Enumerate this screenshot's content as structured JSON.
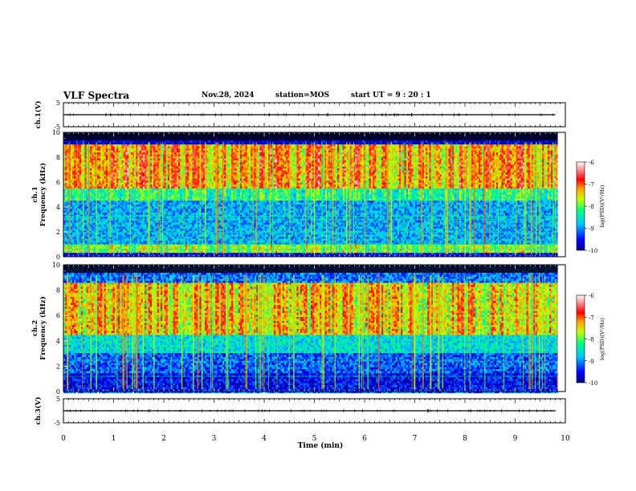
{
  "header": {
    "title": "VLF Spectra",
    "date": "Nov.28, 2024",
    "station": "station=MOS",
    "start": "start  UT =   9 : 20 : 1"
  },
  "colorbar": {
    "label": "log(PSD)(V²/Hz)",
    "ticks": [
      "-6",
      "-7",
      "-8",
      "-9",
      "-10"
    ],
    "colors": [
      "#000080",
      "#0000ff",
      "#00c8ff",
      "#00ff80",
      "#c8ff00",
      "#ffa000",
      "#ff0000",
      "#ff8080",
      "#ffffff"
    ]
  },
  "chart_data": [
    {
      "type": "line",
      "name": "ch1-waveform",
      "ylabel": "ch.1(V)",
      "ylim": [
        -5,
        5
      ],
      "ytick_labels": [
        "5",
        "-5"
      ],
      "x": [
        0,
        9.8
      ],
      "y": [
        0,
        0
      ]
    },
    {
      "type": "heatmap",
      "name": "ch1-spectrogram",
      "ylabel": "ch.1\nFrequency (kHz)",
      "ylim": [
        0,
        10
      ],
      "ytick_labels": [
        "0",
        "2",
        "4",
        "6",
        "8",
        "10"
      ],
      "xlim": [
        0,
        10
      ],
      "data_end_min": 9.85,
      "zlim": [
        -10,
        -6
      ],
      "bands": [
        {
          "f_lo": 0.0,
          "f_hi": 0.3,
          "level": 0.1
        },
        {
          "f_lo": 0.3,
          "f_hi": 1.0,
          "level": 0.55
        },
        {
          "f_lo": 1.0,
          "f_hi": 4.5,
          "level": 0.28
        },
        {
          "f_lo": 4.5,
          "f_hi": 5.5,
          "level": 0.45
        },
        {
          "f_lo": 5.5,
          "f_hi": 9.0,
          "level": 0.72
        },
        {
          "f_lo": 9.0,
          "f_hi": 10.0,
          "level": 0.08
        }
      ],
      "lines_khz": [
        0.6,
        1.0,
        1.35,
        1.95,
        3.0,
        3.25
      ]
    },
    {
      "type": "heatmap",
      "name": "ch2-spectrogram",
      "ylabel": "ch.2\nFrequency (kHz)",
      "ylim": [
        0,
        10
      ],
      "ytick_labels": [
        "0",
        "2",
        "4",
        "6",
        "8",
        "10"
      ],
      "xlim": [
        0,
        10
      ],
      "data_end_min": 9.85,
      "zlim": [
        -10,
        -6
      ],
      "bands": [
        {
          "f_lo": 0.0,
          "f_hi": 1.5,
          "level": 0.12
        },
        {
          "f_lo": 1.5,
          "f_hi": 3.0,
          "level": 0.2
        },
        {
          "f_lo": 3.0,
          "f_hi": 4.5,
          "level": 0.35
        },
        {
          "f_lo": 4.5,
          "f_hi": 8.5,
          "level": 0.66
        },
        {
          "f_lo": 8.5,
          "f_hi": 10.0,
          "level": 0.22
        }
      ],
      "lines_khz": [
        1.2,
        2.4
      ]
    },
    {
      "type": "line",
      "name": "ch3-waveform",
      "ylabel": "ch.3(V)",
      "ylim": [
        -5,
        5
      ],
      "ytick_labels": [
        "5",
        "-5"
      ],
      "x": [
        0,
        9.8
      ],
      "y": [
        0,
        0
      ]
    }
  ],
  "xaxis": {
    "label": "Time  (min)",
    "ticks": [
      "0",
      "1",
      "2",
      "3",
      "4",
      "5",
      "6",
      "7",
      "8",
      "9",
      "10"
    ],
    "range": [
      0,
      10
    ]
  }
}
